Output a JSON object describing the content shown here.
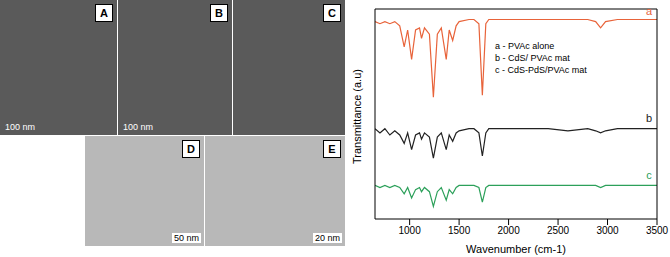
{
  "panels": [
    {
      "label": "A",
      "scale_bar": "100 nm"
    },
    {
      "label": "B",
      "scale_bar": "100 nm"
    },
    {
      "label": "C"
    },
    {
      "label": "D",
      "scale_bar": "50 nm"
    },
    {
      "label": "E",
      "scale_bar": "20 nm"
    }
  ],
  "chart_data": {
    "type": "line",
    "x_label": "Wavenumber (cm-1)",
    "y_label": "Transmittance (a.u)",
    "x": [
      650,
      700,
      750,
      800,
      850,
      900,
      945,
      980,
      1020,
      1060,
      1100,
      1120,
      1150,
      1200,
      1240,
      1280,
      1320,
      1370,
      1400,
      1435,
      1470,
      1500,
      1600,
      1650,
      1700,
      1735,
      1770,
      1800,
      1900,
      2000,
      2200,
      2400,
      2600,
      2800,
      2880,
      2930,
      2980,
      3100,
      3300,
      3500
    ],
    "series": [
      {
        "name": "a - PVAc alone",
        "color": "#e8633a",
        "values": [
          94,
          93,
          94,
          93,
          94,
          92,
          82,
          90,
          76,
          90,
          91,
          86,
          91,
          88,
          58,
          88,
          91,
          76,
          90,
          85,
          92,
          94,
          95,
          95,
          93,
          59,
          93,
          95,
          95,
          95,
          95,
          95,
          95,
          95,
          94,
          91,
          94,
          95,
          95,
          95
        ]
      },
      {
        "name": "b - CdS/ PVAc mat",
        "color": "#222222",
        "values": [
          43,
          41,
          43,
          40,
          42,
          40,
          36,
          41,
          33,
          40,
          41,
          38,
          41,
          39,
          29,
          39,
          41,
          33,
          40,
          37,
          41,
          42,
          43,
          43,
          41,
          30,
          41,
          43,
          43,
          43,
          43,
          43,
          42,
          43,
          42,
          41,
          42,
          43,
          43,
          43
        ]
      },
      {
        "name": "c - CdS-PdS/PVAc mat",
        "color": "#2ca05a",
        "values": [
          16,
          15,
          16,
          15,
          16,
          15,
          12,
          15,
          10,
          14,
          15,
          13,
          15,
          13,
          6,
          13,
          15,
          9,
          14,
          12,
          15,
          16,
          16,
          16,
          15,
          8,
          15,
          16,
          16,
          16,
          16,
          16,
          16,
          16,
          16,
          15,
          16,
          16,
          16,
          16
        ]
      }
    ],
    "annotations": [
      {
        "text": "a",
        "x": 3420,
        "y": 99
      },
      {
        "text": "b",
        "x": 3420,
        "y": 48
      },
      {
        "text": "c",
        "x": 3420,
        "y": 21
      }
    ],
    "xlim": [
      650,
      3500
    ],
    "xticks": [
      1000,
      1500,
      2000,
      2500,
      3000,
      3500
    ],
    "ylim": [
      0,
      100
    ],
    "tick_labels": "x",
    "legend": "upper right",
    "grid": false
  }
}
